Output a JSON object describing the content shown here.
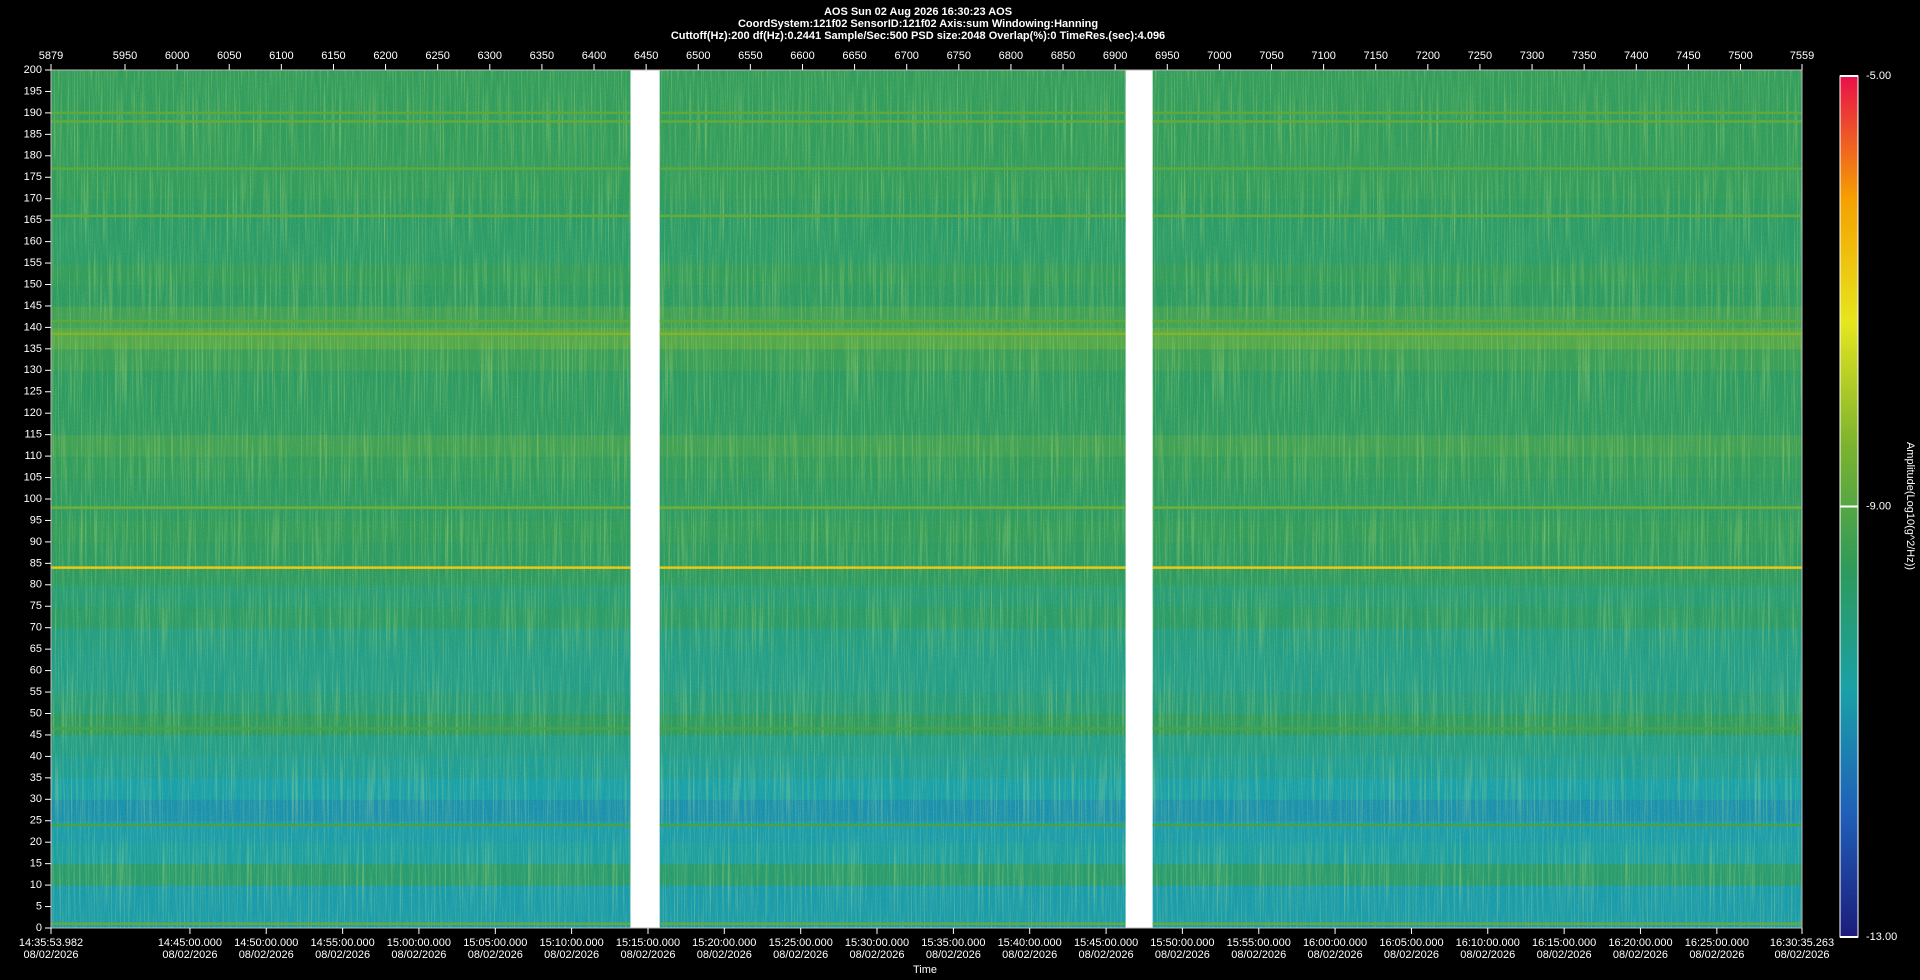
{
  "chart_data": {
    "type": "spectrogram",
    "title": "AOS  Sun 02 Aug 2026 16:30:23  AOS",
    "subtitle": "CoordSystem:121f02   SensorID:121f02   Axis:sum   Windowing:Hanning",
    "subtitle2": "Cuttoff(Hz):200    df(Hz):0.2441    Sample/Sec:500    PSD size:2048    Overlap(%):0    TimeRes.(sec):4.096",
    "x_label": "Time",
    "colorbar_label": "Amplitude(Log10(g^2/Hz))",
    "xlim": [
      5879,
      7559
    ],
    "ylim": [
      0,
      200
    ],
    "x2ticks": [
      5879,
      5950,
      6000,
      6050,
      6100,
      6150,
      6200,
      6250,
      6300,
      6350,
      6400,
      6450,
      6500,
      6550,
      6600,
      6650,
      6700,
      6750,
      6800,
      6850,
      6900,
      6950,
      7000,
      7050,
      7100,
      7150,
      7200,
      7250,
      7300,
      7350,
      7400,
      7450,
      7500,
      7559
    ],
    "yticks": [
      0,
      5,
      10,
      15,
      20,
      25,
      30,
      35,
      40,
      45,
      50,
      55,
      60,
      65,
      70,
      75,
      80,
      85,
      90,
      95,
      100,
      105,
      110,
      115,
      120,
      125,
      130,
      135,
      140,
      145,
      150,
      155,
      160,
      165,
      170,
      175,
      180,
      185,
      190,
      195,
      200
    ],
    "xticks": [
      {
        "value": 5879,
        "label": "14:35:53.982"
      },
      {
        "value": 6012.3,
        "label": "14:45:00.000"
      },
      {
        "value": 6085.5,
        "label": "14:50:00.000"
      },
      {
        "value": 6158.8,
        "label": "14:55:00.000"
      },
      {
        "value": 6232.0,
        "label": "15:00:00.000"
      },
      {
        "value": 6305.3,
        "label": "15:05:00.000"
      },
      {
        "value": 6378.5,
        "label": "15:10:00.000"
      },
      {
        "value": 6451.8,
        "label": "15:15:00.000"
      },
      {
        "value": 6525.0,
        "label": "15:20:00.000"
      },
      {
        "value": 6598.3,
        "label": "15:25:00.000"
      },
      {
        "value": 6671.5,
        "label": "15:30:00.000"
      },
      {
        "value": 6744.8,
        "label": "15:35:00.000"
      },
      {
        "value": 6818.0,
        "label": "15:40:00.000"
      },
      {
        "value": 6891.3,
        "label": "15:45:00.000"
      },
      {
        "value": 6964.5,
        "label": "15:50:00.000"
      },
      {
        "value": 7037.8,
        "label": "15:55:00.000"
      },
      {
        "value": 7111.0,
        "label": "16:00:00.000"
      },
      {
        "value": 7184.3,
        "label": "16:05:00.000"
      },
      {
        "value": 7257.5,
        "label": "16:10:00.000"
      },
      {
        "value": 7330.8,
        "label": "16:15:00.000"
      },
      {
        "value": 7404.0,
        "label": "16:20:00.000"
      },
      {
        "value": 7477.3,
        "label": "16:25:00.000"
      },
      {
        "value": 7559,
        "label": "16:30:35.263"
      }
    ],
    "xtick_dates": [
      "08/02/2026",
      "08/02/2026",
      "08/02/2026",
      "08/02/2026",
      "08/02/2026",
      "08/02/2026",
      "08/02/2026",
      "08/02/2026",
      "08/02/2026",
      "08/02/2026",
      "08/02/2026",
      "08/02/2026",
      "08/02/2026",
      "08/02/2026",
      "08/02/2026",
      "08/02/2026",
      "08/02/2026",
      "08/02/2026",
      "08/02/2026",
      "08/02/2026",
      "08/02/2026",
      "08/02/2026",
      "08/02/2026"
    ],
    "clim": [
      -13,
      -5
    ],
    "cticks": [
      {
        "value": -13,
        "label": "-13.00"
      },
      {
        "value": -9,
        "label": "-9.00"
      },
      {
        "value": -5,
        "label": "-5.00"
      }
    ],
    "colormap": [
      "#1c1c7a",
      "#1f5fb8",
      "#1aa0a8",
      "#2e9a5a",
      "#7cb32e",
      "#e6e61e",
      "#f5a000",
      "#e8104a"
    ],
    "segments": [
      [
        5879,
        6435
      ],
      [
        6463,
        6910
      ],
      [
        6936,
        7559
      ]
    ],
    "band_edges": [
      0,
      5,
      10,
      15,
      20,
      25,
      30,
      35,
      40,
      45,
      50,
      55,
      60,
      65,
      70,
      75,
      80,
      85,
      90,
      95,
      100,
      105,
      110,
      115,
      120,
      125,
      130,
      135,
      140,
      145,
      150,
      155,
      160,
      165,
      170,
      175,
      180,
      185,
      190,
      195,
      200
    ],
    "band_values": [
      -10.8,
      -10.8,
      -9.8,
      -10.6,
      -10.8,
      -11,
      -10.7,
      -10.4,
      -10.2,
      -9.6,
      -10,
      -10.2,
      -10.2,
      -10.1,
      -9.7,
      -9.9,
      -9.6,
      -9.6,
      -9.5,
      -9.6,
      -9.6,
      -9.5,
      -9.3,
      -9.6,
      -9.6,
      -9.6,
      -9.4,
      -9.0,
      -9.3,
      -9.6,
      -9.5,
      -9.7,
      -9.7,
      -9.6,
      -9.5,
      -9.5,
      -9.5,
      -9.5,
      -9.5,
      -9.5
    ],
    "tonal_frequencies": [
      1,
      24,
      46.5,
      84,
      98,
      138.5,
      141.5,
      166,
      177,
      188,
      190
    ],
    "tonal_values": [
      -8.8,
      -9.2,
      -9.2,
      -6.8,
      -8.6,
      -8.4,
      -8.9,
      -8.8,
      -8.9,
      -8.8,
      -8.9
    ]
  }
}
